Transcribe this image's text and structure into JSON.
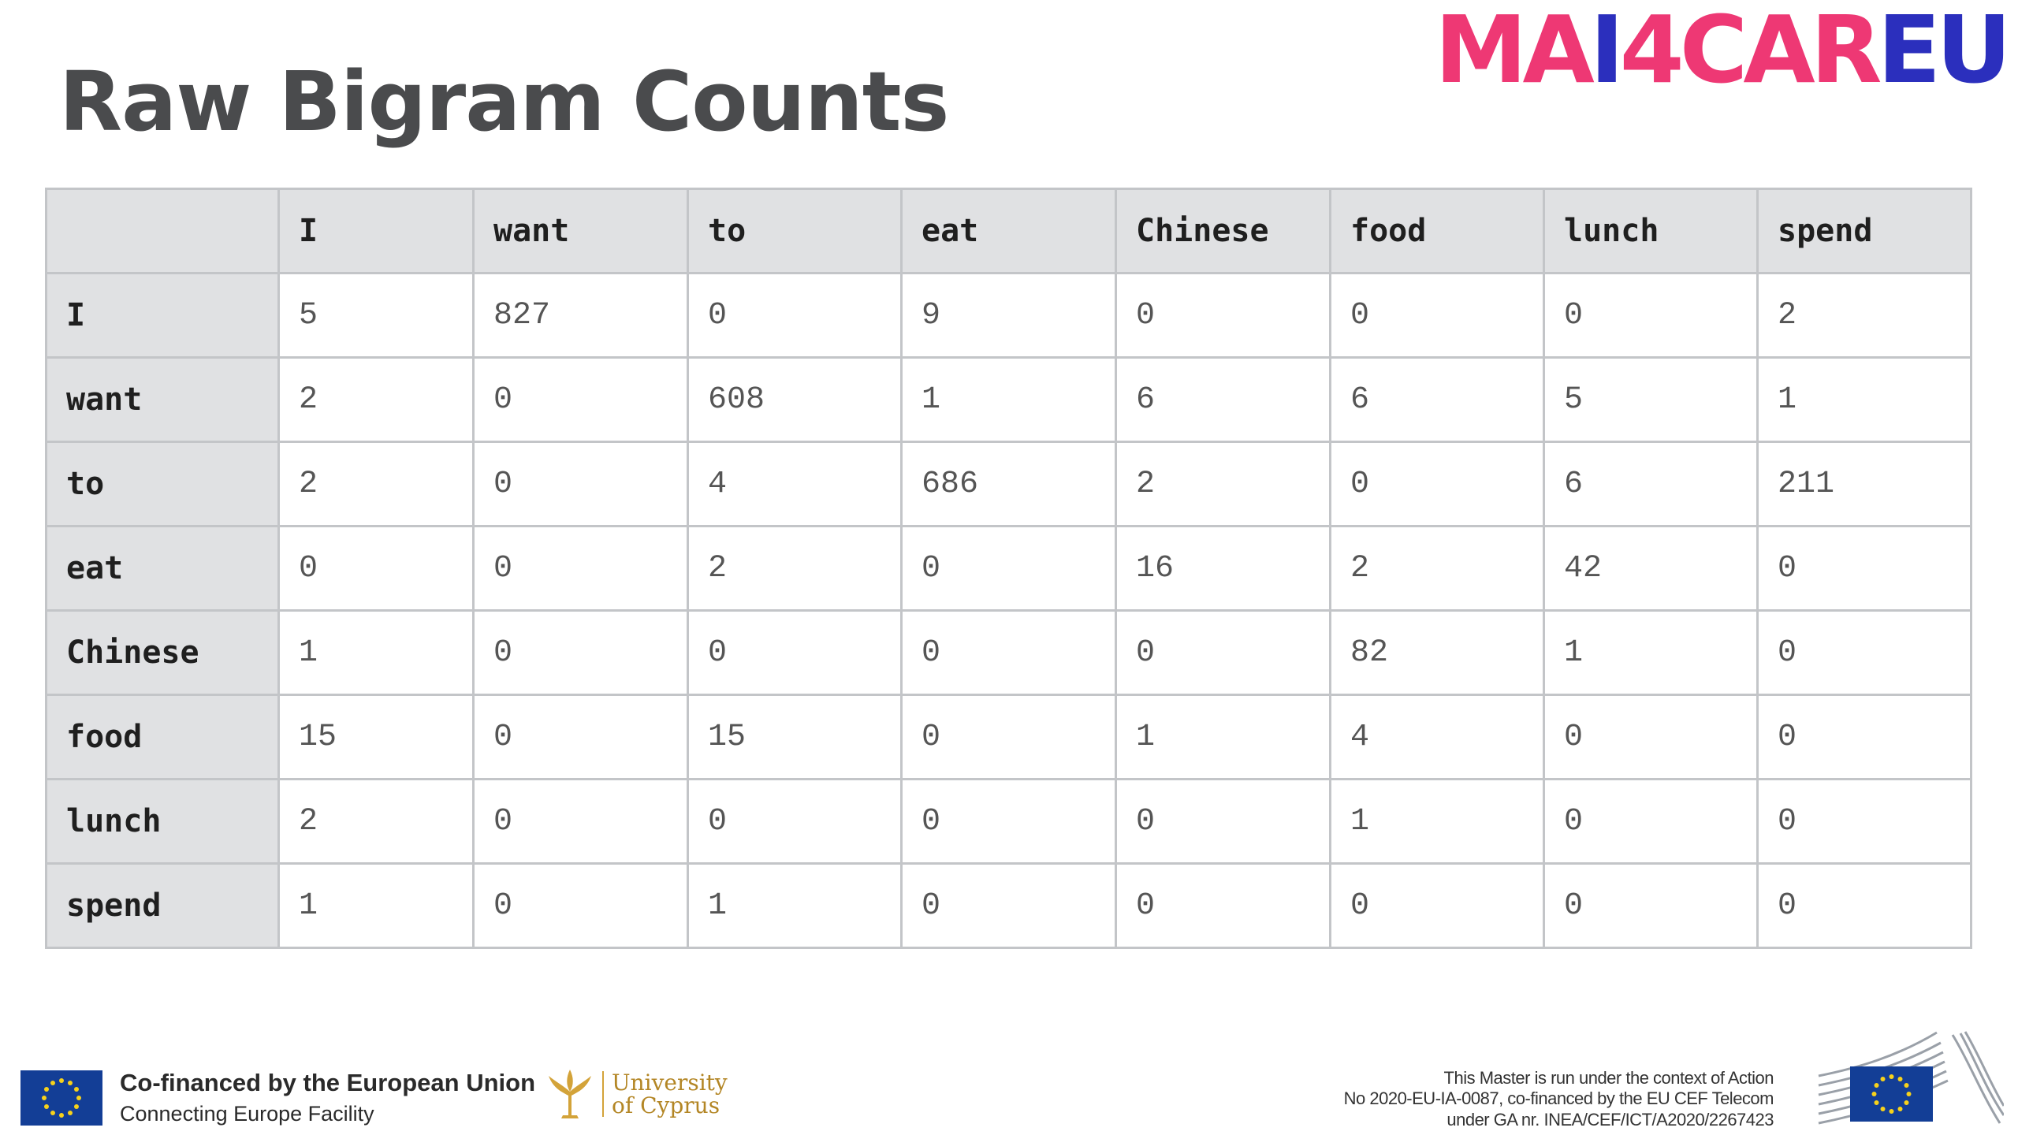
{
  "slide": {
    "title": "Raw Bigram Counts"
  },
  "logo": {
    "part1": "MA",
    "part2": "I",
    "part3": "4CAR",
    "part4": "EU",
    "colors": {
      "pink": "#ee3874",
      "blue": "#2b2fbd"
    }
  },
  "table": {
    "corner": "",
    "columns": [
      "I",
      "want",
      "to",
      "eat",
      "Chinese",
      "food",
      "lunch",
      "spend"
    ],
    "rows": [
      {
        "label": "I",
        "cells": [
          "5",
          "827",
          "0",
          "9",
          "0",
          "0",
          "0",
          "2"
        ]
      },
      {
        "label": "want",
        "cells": [
          "2",
          "0",
          "608",
          "1",
          "6",
          "6",
          "5",
          "1"
        ]
      },
      {
        "label": "to",
        "cells": [
          "2",
          "0",
          "4",
          "686",
          "2",
          "0",
          "6",
          "211"
        ]
      },
      {
        "label": "eat",
        "cells": [
          "0",
          "0",
          "2",
          "0",
          "16",
          "2",
          "42",
          "0"
        ]
      },
      {
        "label": "Chinese",
        "cells": [
          "1",
          "0",
          "0",
          "0",
          "0",
          "82",
          "1",
          "0"
        ]
      },
      {
        "label": "food",
        "cells": [
          "15",
          "0",
          "15",
          "0",
          "1",
          "4",
          "0",
          "0"
        ]
      },
      {
        "label": "lunch",
        "cells": [
          "2",
          "0",
          "0",
          "0",
          "0",
          "1",
          "0",
          "0"
        ]
      },
      {
        "label": "spend",
        "cells": [
          "1",
          "0",
          "1",
          "0",
          "0",
          "0",
          "0",
          "0"
        ]
      }
    ]
  },
  "footer": {
    "eu_line1": "Co-financed by the European Union",
    "eu_line2": "Connecting Europe Facility",
    "ucy_line1": "University",
    "ucy_line2": "of Cyprus",
    "note_line1": "This Master is run under the context of Action",
    "note_line2": "No 2020-EU-IA-0087, co-financed by the EU CEF Telecom",
    "note_line3": "under GA nr. INEA/CEF/ICT/A2020/2267423",
    "eu_flag_color": "#133e96",
    "ucy_color": "#b38625"
  }
}
